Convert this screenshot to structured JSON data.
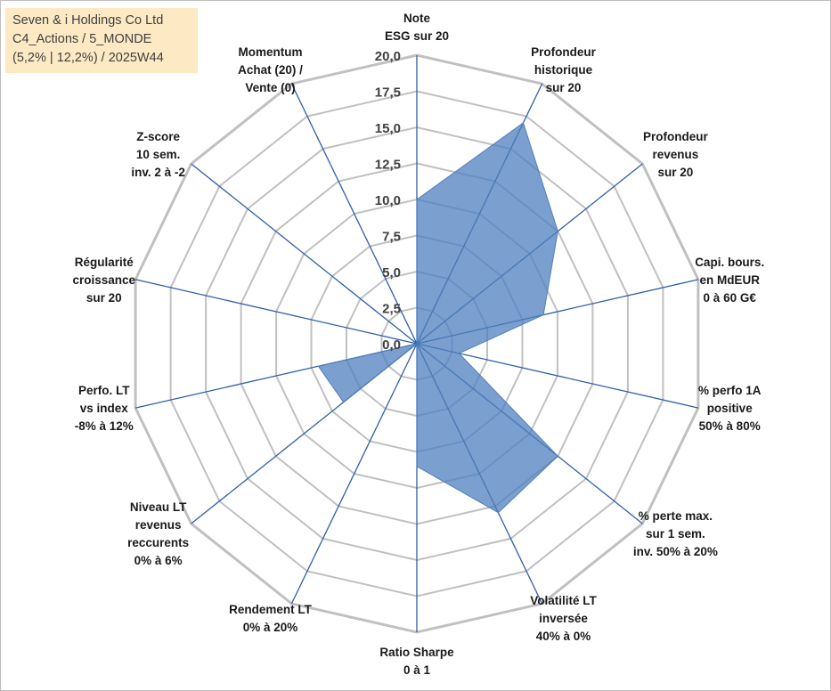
{
  "info_box": {
    "line1": "Seven & i Holdings Co Ltd",
    "line2": "C4_Actions / 5_MONDE",
    "line3": "(5,2% | 12,2%) / 2025W44"
  },
  "colors": {
    "fill": "#4f7fbd",
    "fill_opacity": 0.75,
    "spoke": "#2e5fa8",
    "ring": "#c0c0c0",
    "info_bg": "#fde9c4"
  },
  "chart_data": {
    "type": "radar",
    "title": "",
    "rmin": 0,
    "rmax": 20,
    "ticks": [
      "0,0",
      "2,5",
      "5,0",
      "7,5",
      "10,0",
      "12,5",
      "15,0",
      "17,5",
      "20,0"
    ],
    "tick_values": [
      0,
      2.5,
      5,
      7.5,
      10,
      12.5,
      15,
      17.5,
      20
    ],
    "grid": true,
    "axes": [
      {
        "lines": [
          "Note",
          "ESG sur 20"
        ]
      },
      {
        "lines": [
          "Profondeur",
          "historique",
          "sur 20"
        ]
      },
      {
        "lines": [
          "Profondeur",
          "revenus",
          "sur 20"
        ]
      },
      {
        "lines": [
          "Capi. bours.",
          "en MdEUR",
          "0 à 60 G€"
        ]
      },
      {
        "lines": [
          "% perfo 1A",
          "positive",
          "50% à 80%"
        ]
      },
      {
        "lines": [
          "% perte max.",
          "sur 1 sem.",
          "inv. 50% à 20%"
        ]
      },
      {
        "lines": [
          "Volatilité LT",
          "inversée",
          "40% à 0%"
        ]
      },
      {
        "lines": [
          "Ratio Sharpe",
          "0 à 1"
        ]
      },
      {
        "lines": [
          "Rendement LT",
          "0% à 20%"
        ]
      },
      {
        "lines": [
          "Niveau LT",
          "revenus",
          "reccurents",
          "0% à 6%"
        ]
      },
      {
        "lines": [
          "Perfo. LT",
          "vs index",
          "-8% à 12%"
        ]
      },
      {
        "lines": [
          "Régularité",
          "croissance",
          "sur 20"
        ]
      },
      {
        "lines": [
          "Z-score",
          "10 sem.",
          "inv. 2 à -2"
        ]
      },
      {
        "lines": [
          "Momentum",
          "Achat (20) /",
          "Vente (0)"
        ]
      }
    ],
    "series": [
      {
        "values": [
          10.0,
          17.0,
          12.5,
          9.0,
          3.0,
          12.5,
          13.0,
          8.5,
          0.0,
          6.5,
          7.0,
          0.0,
          0.0,
          0.0
        ]
      }
    ]
  }
}
